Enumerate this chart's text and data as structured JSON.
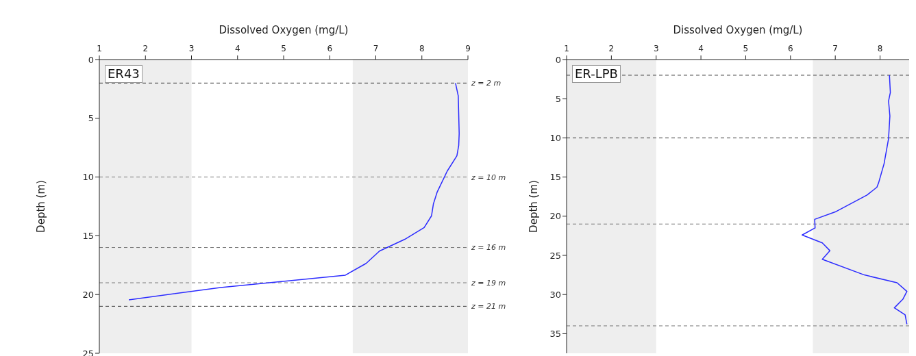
{
  "chart_data": [
    {
      "type": "line",
      "xlabel": "Dissolved Oxygen (mg/L)",
      "ylabel": "Depth (m)",
      "annotations": [
        "ER43"
      ],
      "xlim": [
        1,
        9
      ],
      "xticks": [
        1,
        2,
        3,
        4,
        5,
        6,
        7,
        8,
        9
      ],
      "ylim": [
        25,
        0
      ],
      "yticks": [
        0,
        5,
        10,
        15,
        20,
        25
      ],
      "marker": "none",
      "line_style": "solid",
      "series": [
        {
          "color": "#2b2bff",
          "x": [
            8.73,
            8.79,
            8.81,
            8.8,
            8.76,
            8.55,
            8.33,
            8.25,
            8.21,
            8.05,
            7.63,
            7.08,
            6.79,
            6.34,
            3.63,
            1.64
          ],
          "values": [
            2,
            3.1,
            6.3,
            7.3,
            8.2,
            9.5,
            11.3,
            12.3,
            13.3,
            14.3,
            15.3,
            16.3,
            17.35,
            18.35,
            19.4,
            20.45
          ]
        }
      ],
      "bands": [
        {
          "axis": "x",
          "from": 1,
          "to": 3,
          "color": "#eeeeee"
        },
        {
          "axis": "x",
          "from": 6.5,
          "to": 9,
          "color": "#eeeeee"
        }
      ],
      "ref_lines": [
        {
          "axis": "y",
          "value": 2,
          "label": "z = 2 m",
          "color": "#333333",
          "line_style": "dashed"
        },
        {
          "axis": "y",
          "value": 10,
          "label": "z = 10 m",
          "color": "#777777",
          "line_style": "dashed"
        },
        {
          "axis": "y",
          "value": 16,
          "label": "z = 16 m",
          "color": "#777777",
          "line_style": "dashed"
        },
        {
          "axis": "y",
          "value": 19,
          "label": "z = 19 m",
          "color": "#777777",
          "line_style": "dashed"
        },
        {
          "axis": "y",
          "value": 21,
          "label": "z = 21 m",
          "color": "#333333",
          "line_style": "dashed"
        }
      ]
    },
    {
      "type": "line",
      "xlabel": "Dissolved Oxygen (mg/L)",
      "ylabel": "Depth (m)",
      "annotations": [
        "ER-LPB"
      ],
      "xlim": [
        1,
        8.65
      ],
      "xticks": [
        1,
        2,
        3,
        4,
        5,
        6,
        7,
        8
      ],
      "ylim": [
        37.5,
        0
      ],
      "yticks": [
        0,
        5,
        10,
        15,
        20,
        25,
        30,
        35
      ],
      "marker": "none",
      "line_style": "solid",
      "series": [
        {
          "color": "#2b2bff",
          "x": [
            8.21,
            8.23,
            8.19,
            8.22,
            8.19,
            8.09,
            7.97,
            7.93,
            7.71,
            7.02,
            6.54,
            6.55,
            6.26,
            6.71,
            6.88,
            6.71,
            7.65,
            8.38,
            8.6,
            8.51,
            8.32,
            8.56,
            8.6
          ],
          "values": [
            2,
            4.2,
            5.3,
            7.2,
            10.1,
            13.3,
            15.7,
            16.3,
            17.3,
            19.4,
            20.4,
            21.5,
            22.4,
            23.4,
            24.4,
            25.5,
            27.5,
            28.5,
            29.6,
            30.6,
            31.7,
            32.6,
            33.8
          ]
        }
      ],
      "bands": [
        {
          "axis": "x",
          "from": 1,
          "to": 3,
          "color": "#eeeeee"
        },
        {
          "axis": "x",
          "from": 6.5,
          "to": 8.65,
          "color": "#eeeeee"
        }
      ],
      "ref_lines": [
        {
          "axis": "y",
          "value": 2,
          "color": "#333333",
          "line_style": "dashed"
        },
        {
          "axis": "y",
          "value": 10,
          "color": "#333333",
          "line_style": "dashed"
        },
        {
          "axis": "y",
          "value": 21,
          "color": "#777777",
          "line_style": "dashed"
        },
        {
          "axis": "y",
          "value": 34,
          "color": "#777777",
          "line_style": "dashed"
        }
      ]
    }
  ]
}
